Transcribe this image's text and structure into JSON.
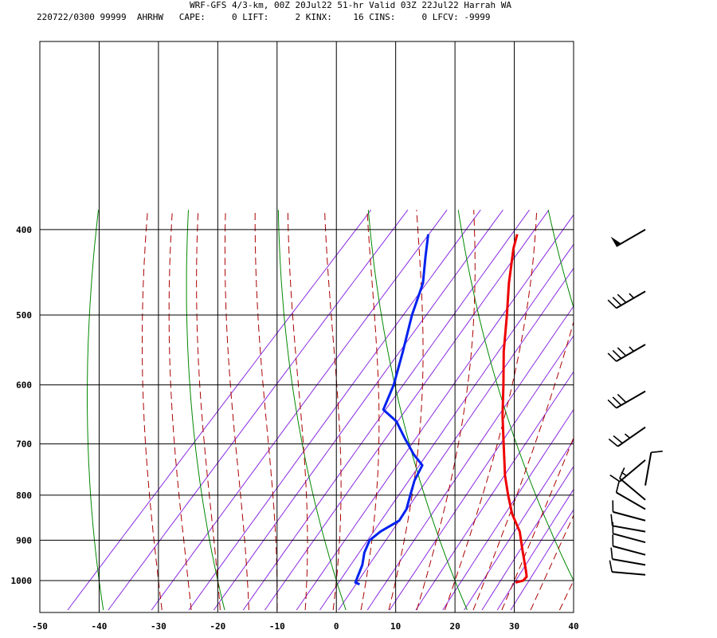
{
  "header": {
    "title": "WRF-GFS 4/3-km, 00Z 20Jul22 51-hr Valid 03Z 22Jul22 Harrah WA",
    "info": "220722/0300 99999  AHRHW   CAPE:     0 LIFT:     2 KINX:    16 CINS:     0 LFCV: -9999"
  },
  "chart_data": {
    "type": "skew-t log-p sounding",
    "station": "Harrah WA",
    "x_ticks": [
      -50,
      -40,
      -30,
      -20,
      -10,
      0,
      10,
      20,
      30,
      40
    ],
    "xlim": [
      -50,
      40
    ],
    "x_unit": "",
    "y_ticks": [
      400,
      500,
      600,
      700,
      800,
      900,
      1000
    ],
    "ylim": [
      400,
      1050
    ],
    "y_scale": "log (pressure)",
    "indices": {
      "CAPE": 0,
      "LIFT": 2,
      "KINX": 16,
      "CINS": 0,
      "LFCV": -9999
    },
    "series": [
      {
        "color": "#ee0000",
        "points": [
          [
            1005,
            30.5
          ],
          [
            1000,
            31.5
          ],
          [
            990,
            31.5
          ],
          [
            975,
            30.5
          ],
          [
            920,
            26.5
          ],
          [
            880,
            23.5
          ],
          [
            840,
            19.5
          ],
          [
            800,
            16
          ],
          [
            760,
            12.5
          ],
          [
            700,
            7.5
          ],
          [
            650,
            3
          ],
          [
            600,
            -1.5
          ],
          [
            550,
            -6.5
          ],
          [
            500,
            -11.5
          ],
          [
            460,
            -16
          ],
          [
            420,
            -20.5
          ],
          [
            405,
            -22
          ]
        ]
      },
      {
        "color": "#0022ee",
        "points": [
          [
            1010,
            4.5
          ],
          [
            1005,
            3.5
          ],
          [
            990,
            3
          ],
          [
            960,
            2
          ],
          [
            930,
            0.5
          ],
          [
            900,
            -0.5
          ],
          [
            880,
            0
          ],
          [
            855,
            1.5
          ],
          [
            830,
            1
          ],
          [
            800,
            -0.5
          ],
          [
            770,
            -2
          ],
          [
            740,
            -3
          ],
          [
            720,
            -6
          ],
          [
            690,
            -10
          ],
          [
            660,
            -14
          ],
          [
            640,
            -18
          ],
          [
            600,
            -20
          ],
          [
            550,
            -23.5
          ],
          [
            500,
            -27.5
          ],
          [
            460,
            -30.5
          ],
          [
            430,
            -34
          ],
          [
            405,
            -37
          ]
        ]
      }
    ],
    "wind_barbs": [
      {
        "p": 400,
        "dir": 240,
        "spd": 50
      },
      {
        "p": 470,
        "dir": 240,
        "spd": 35
      },
      {
        "p": 540,
        "dir": 240,
        "spd": 35
      },
      {
        "p": 610,
        "dir": 240,
        "spd": 30
      },
      {
        "p": 670,
        "dir": 235,
        "spd": 25
      },
      {
        "p": 730,
        "dir": 230,
        "spd": 15
      },
      {
        "p": 780,
        "dir": 10,
        "spd": 10
      },
      {
        "p": 810,
        "dir": 310,
        "spd": 10
      },
      {
        "p": 830,
        "dir": 300,
        "spd": 10
      },
      {
        "p": 855,
        "dir": 285,
        "spd": 10
      },
      {
        "p": 880,
        "dir": 280,
        "spd": 10
      },
      {
        "p": 905,
        "dir": 285,
        "spd": 10
      },
      {
        "p": 935,
        "dir": 285,
        "spd": 10
      },
      {
        "p": 960,
        "dir": 280,
        "spd": 10
      },
      {
        "p": 985,
        "dir": 275,
        "spd": 10
      }
    ],
    "colors": {
      "temperature": "#ee0000",
      "dewpoint": "#0022ee",
      "isotherm_grid": "#000000",
      "dry_adiabat": "#008800",
      "moist_adiabat": "#aa0000",
      "mixing_ratio": "#8a2be2",
      "barb": "#000000"
    }
  }
}
